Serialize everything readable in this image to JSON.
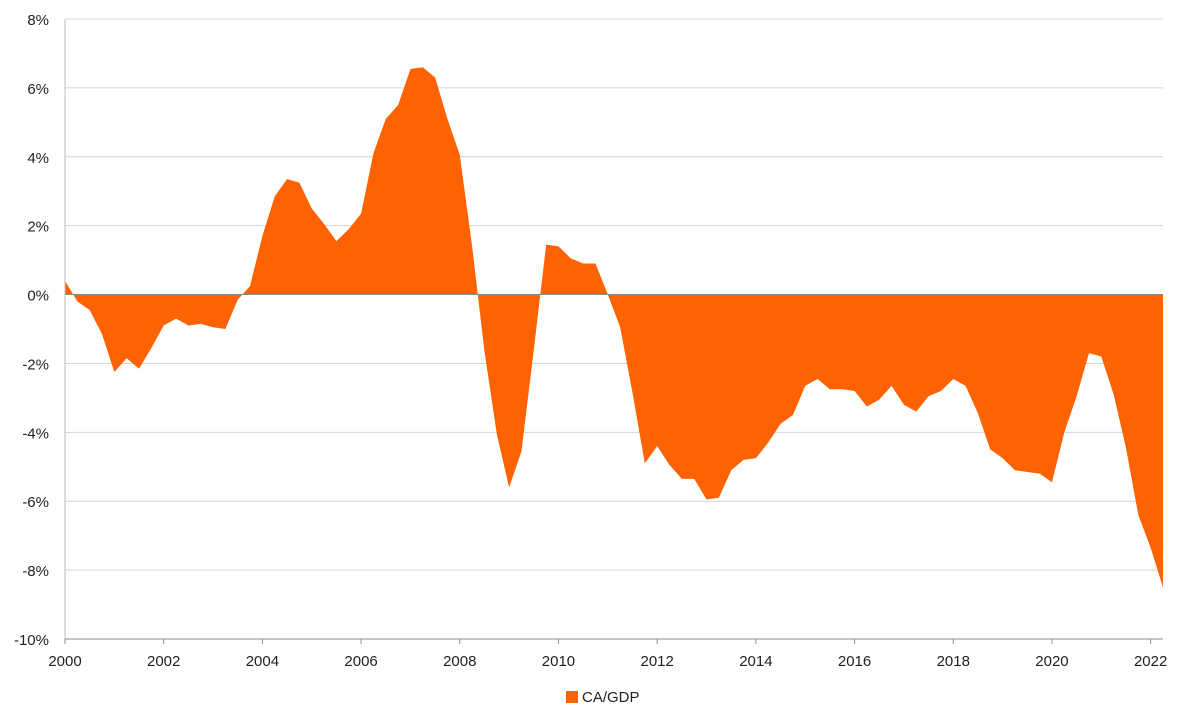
{
  "chart_data": {
    "type": "area",
    "title": "",
    "xlabel": "",
    "ylabel": "",
    "xlim": [
      2000,
      2022.25
    ],
    "ylim": [
      -10,
      8
    ],
    "y_ticks": [
      8,
      6,
      4,
      2,
      0,
      -2,
      -4,
      -6,
      -8,
      -10
    ],
    "y_tick_labels": [
      "8%",
      "6%",
      "4%",
      "2%",
      "0%",
      "-2%",
      "-4%",
      "-6%",
      "-8%",
      "-10%"
    ],
    "x_ticks": [
      2000,
      2002,
      2004,
      2006,
      2008,
      2010,
      2012,
      2014,
      2016,
      2018,
      2020,
      2022
    ],
    "x_tick_labels": [
      "2000",
      "2002",
      "2004",
      "2006",
      "2008",
      "2010",
      "2012",
      "2014",
      "2016",
      "2018",
      "2020",
      "2022"
    ],
    "grid": "horizontal",
    "legend_position": "bottom-center",
    "series": [
      {
        "name": "CA/GDP",
        "color": "#FF6200",
        "x": [
          2000.0,
          2000.25,
          2000.5,
          2000.75,
          2001.0,
          2001.25,
          2001.5,
          2001.75,
          2002.0,
          2002.25,
          2002.5,
          2002.75,
          2003.0,
          2003.25,
          2003.5,
          2003.75,
          2004.0,
          2004.25,
          2004.5,
          2004.75,
          2005.0,
          2005.25,
          2005.5,
          2005.75,
          2006.0,
          2006.25,
          2006.5,
          2006.75,
          2007.0,
          2007.25,
          2007.5,
          2007.75,
          2008.0,
          2008.25,
          2008.5,
          2008.75,
          2009.0,
          2009.25,
          2009.5,
          2009.75,
          2010.0,
          2010.25,
          2010.5,
          2010.75,
          2011.0,
          2011.25,
          2011.5,
          2011.75,
          2012.0,
          2012.25,
          2012.5,
          2012.75,
          2013.0,
          2013.25,
          2013.5,
          2013.75,
          2014.0,
          2014.25,
          2014.5,
          2014.75,
          2015.0,
          2015.25,
          2015.5,
          2015.75,
          2016.0,
          2016.25,
          2016.5,
          2016.75,
          2017.0,
          2017.25,
          2017.5,
          2017.75,
          2018.0,
          2018.25,
          2018.5,
          2018.75,
          2019.0,
          2019.25,
          2019.5,
          2019.75,
          2020.0,
          2020.25,
          2020.5,
          2020.75,
          2021.0,
          2021.25,
          2021.5,
          2021.75,
          2022.0,
          2022.25
        ],
        "values": [
          0.4,
          -0.2,
          -0.45,
          -1.15,
          -2.25,
          -1.85,
          -2.15,
          -1.55,
          -0.9,
          -0.7,
          -0.9,
          -0.85,
          -0.95,
          -1.0,
          -0.15,
          0.25,
          1.7,
          2.85,
          3.35,
          3.25,
          2.5,
          2.05,
          1.55,
          1.9,
          2.35,
          4.1,
          5.1,
          5.5,
          6.55,
          6.6,
          6.3,
          5.1,
          4.05,
          1.4,
          -1.65,
          -4.05,
          -5.6,
          -4.55,
          -1.6,
          1.45,
          1.4,
          1.05,
          0.9,
          0.9,
          0.0,
          -0.95,
          -2.85,
          -4.9,
          -4.4,
          -4.95,
          -5.35,
          -5.35,
          -5.95,
          -5.9,
          -5.1,
          -4.8,
          -4.75,
          -4.3,
          -3.75,
          -3.5,
          -2.65,
          -2.45,
          -2.75,
          -2.75,
          -2.8,
          -3.25,
          -3.05,
          -2.65,
          -3.2,
          -3.4,
          -2.95,
          -2.8,
          -2.45,
          -2.65,
          -3.45,
          -4.5,
          -4.75,
          -5.1,
          -5.15,
          -5.2,
          -5.45,
          -4.0,
          -2.95,
          -1.7,
          -1.8,
          -2.9,
          -4.45,
          -6.4,
          -7.35,
          -8.5
        ]
      }
    ]
  }
}
